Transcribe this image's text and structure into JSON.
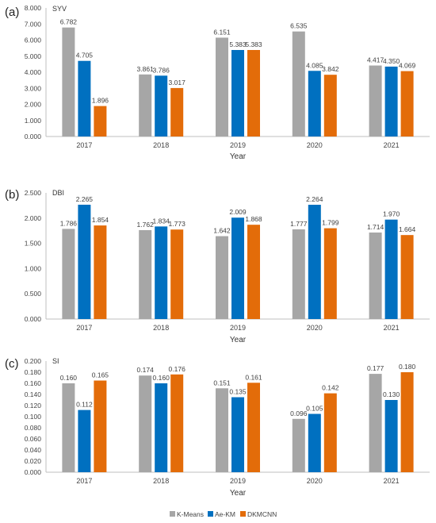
{
  "legend": {
    "items": [
      {
        "label": "K-Means",
        "color": "#a6a6a6"
      },
      {
        "label": "Ae-KM",
        "color": "#0070c0"
      },
      {
        "label": "DKMCNN",
        "color": "#e36c09"
      }
    ]
  },
  "chart_data": [
    {
      "type": "bar",
      "panel_label": "(a)",
      "ylabel": "SYV",
      "xlabel": "Year",
      "categories": [
        "2017",
        "2018",
        "2019",
        "2020",
        "2021"
      ],
      "ylim": [
        0,
        8
      ],
      "yticks": [
        "0.000",
        "1.000",
        "2.000",
        "3.000",
        "4.000",
        "5.000",
        "6.000",
        "7.000",
        "8.000"
      ],
      "yticks_values": [
        0,
        1,
        2,
        3,
        4,
        5,
        6,
        7,
        8
      ],
      "grid": false,
      "series": [
        {
          "name": "K-Means",
          "values": [
            6.782,
            3.861,
            6.151,
            6.535,
            4.417
          ],
          "labels": [
            "6.782",
            "3.861",
            "6.151",
            "6.535",
            "4.417"
          ]
        },
        {
          "name": "Ae-KM",
          "values": [
            4.705,
            3.786,
            5.383,
            4.085,
            4.35
          ],
          "labels": [
            "4.705",
            "3.786",
            "5.383",
            "4.085",
            "4.350"
          ]
        },
        {
          "name": "DKMCNN",
          "values": [
            1.896,
            3.017,
            5.383,
            3.842,
            4.069
          ],
          "labels": [
            "1.896",
            "3.017",
            "5.383",
            "3.842",
            "4.069"
          ]
        }
      ]
    },
    {
      "type": "bar",
      "panel_label": "(b)",
      "ylabel": "DBI",
      "xlabel": "Year",
      "categories": [
        "2017",
        "2018",
        "2019",
        "2020",
        "2021"
      ],
      "ylim": [
        0,
        2.5
      ],
      "yticks": [
        "0.000",
        "0.500",
        "1.000",
        "1.500",
        "2.000",
        "2.500"
      ],
      "yticks_values": [
        0,
        0.5,
        1,
        1.5,
        2,
        2.5
      ],
      "grid": false,
      "series": [
        {
          "name": "K-Means",
          "values": [
            1.786,
            1.762,
            1.642,
            1.777,
            1.714
          ],
          "labels": [
            "1.786",
            "1.762",
            "1.642",
            "1.777",
            "1.714"
          ]
        },
        {
          "name": "Ae-KM",
          "values": [
            2.265,
            1.834,
            2.009,
            2.264,
            1.97
          ],
          "labels": [
            "2.265",
            "1.834",
            "2.009",
            "2.264",
            "1.970"
          ]
        },
        {
          "name": "DKMCNN",
          "values": [
            1.854,
            1.773,
            1.868,
            1.799,
            1.664
          ],
          "labels": [
            "1.854",
            "1.773",
            "1.868",
            "1.799",
            "1.664"
          ]
        }
      ]
    },
    {
      "type": "bar",
      "panel_label": "(c)",
      "ylabel": "SI",
      "xlabel": "Year",
      "categories": [
        "2017",
        "2018",
        "2019",
        "2020",
        "2021"
      ],
      "ylim": [
        0,
        0.2
      ],
      "yticks": [
        "0.000",
        "0.020",
        "0.040",
        "0.060",
        "0.080",
        "0.100",
        "0.120",
        "0.140",
        "0.160",
        "0.180",
        "0.200"
      ],
      "yticks_values": [
        0,
        0.02,
        0.04,
        0.06,
        0.08,
        0.1,
        0.12,
        0.14,
        0.16,
        0.18,
        0.2
      ],
      "grid": false,
      "series": [
        {
          "name": "K-Means",
          "values": [
            0.16,
            0.174,
            0.151,
            0.096,
            0.177
          ],
          "labels": [
            "0.160",
            "0.174",
            "0.151",
            "0.096",
            "0.177"
          ]
        },
        {
          "name": "Ae-KM",
          "values": [
            0.112,
            0.16,
            0.135,
            0.105,
            0.13
          ],
          "labels": [
            "0.112",
            "0.160",
            "0.135",
            "0.105",
            "0.130"
          ]
        },
        {
          "name": "DKMCNN",
          "values": [
            0.165,
            0.176,
            0.161,
            0.142,
            0.18
          ],
          "labels": [
            "0.165",
            "0.176",
            "0.161",
            "0.142",
            "0.180"
          ]
        }
      ]
    }
  ]
}
